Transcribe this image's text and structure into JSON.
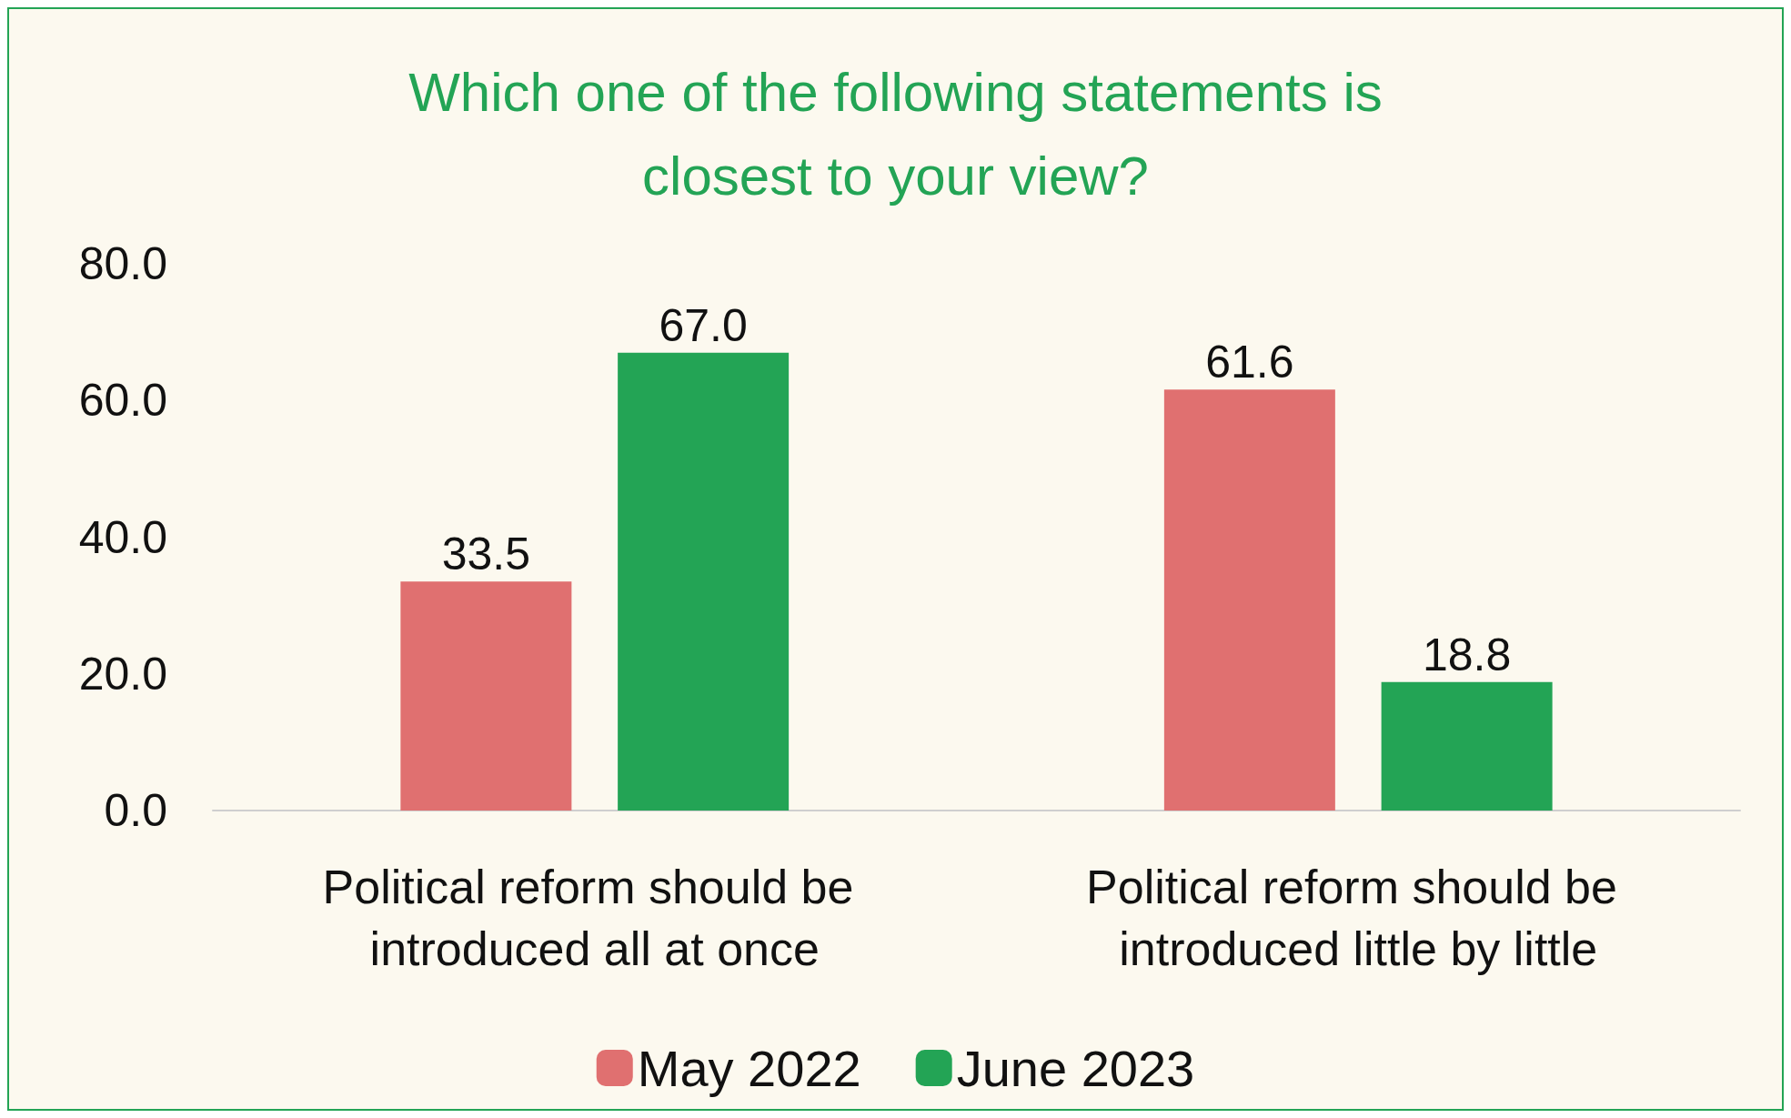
{
  "chart_data": {
    "type": "bar",
    "title": "Which one of the following statements is\nclosest to your view?",
    "categories": [
      "Political reform should be introduced all at once",
      "Political reform should be introduced little by little"
    ],
    "series": [
      {
        "name": "May 2022",
        "color": "#e07070",
        "values": [
          33.5,
          61.6
        ],
        "value_labels": [
          "33.5",
          "61.6"
        ]
      },
      {
        "name": "June 2023",
        "color": "#23a455",
        "values": [
          67.0,
          18.8
        ],
        "value_labels": [
          "67.0",
          "18.8"
        ]
      }
    ],
    "ylim": [
      0,
      80
    ],
    "yticks": [
      {
        "value": 0,
        "label": "0.0"
      },
      {
        "value": 20,
        "label": "20.0"
      },
      {
        "value": 40,
        "label": "40.0"
      },
      {
        "value": 60,
        "label": "60.0"
      },
      {
        "value": 80,
        "label": "80.0"
      }
    ],
    "grid": false,
    "legend": "bottom"
  }
}
